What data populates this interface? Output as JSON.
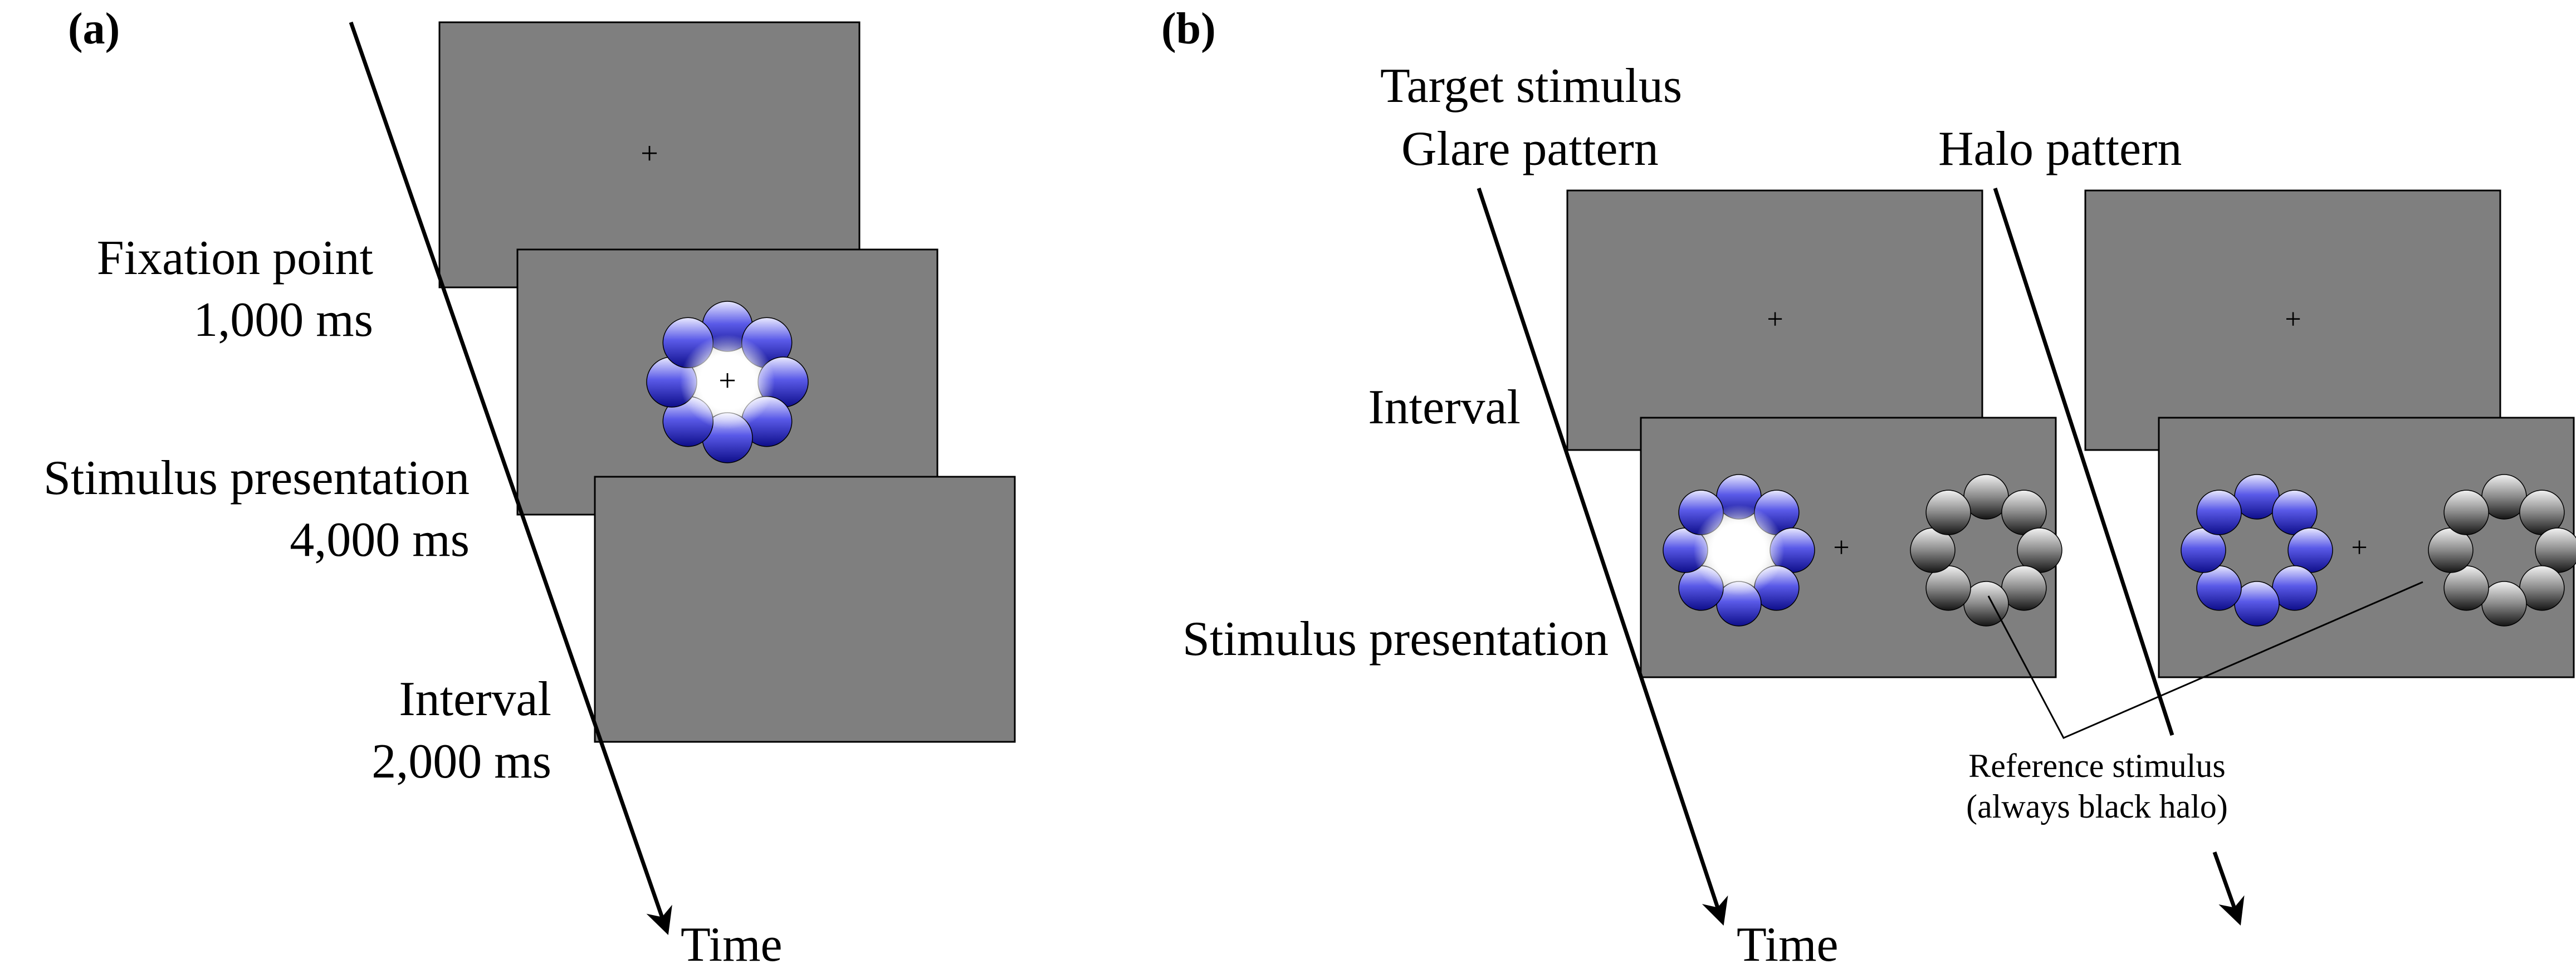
{
  "panel_a": {
    "label": "(a)",
    "fixation_label": "Fixation point",
    "fixation_duration": "1,000 ms",
    "stimulus_label": "Stimulus presentation",
    "stimulus_duration": "4,000 ms",
    "interval_label": "Interval",
    "interval_duration": "2,000 ms",
    "time_label": "Time"
  },
  "panel_b": {
    "label": "(b)",
    "target_label": "Target stimulus",
    "glare_label": "Glare pattern",
    "halo_label": "Halo pattern",
    "interval_label": "Interval",
    "stimulus_label": "Stimulus presentation",
    "reference_label_line1": "Reference stimulus",
    "reference_label_line2": "(always black halo)",
    "time_label": "Time"
  },
  "fixation_glyph": "+",
  "colors": {
    "screen_gray": "#7f7f7f",
    "blue": "#3a3ad6",
    "black": "#000000",
    "white": "#ffffff"
  }
}
